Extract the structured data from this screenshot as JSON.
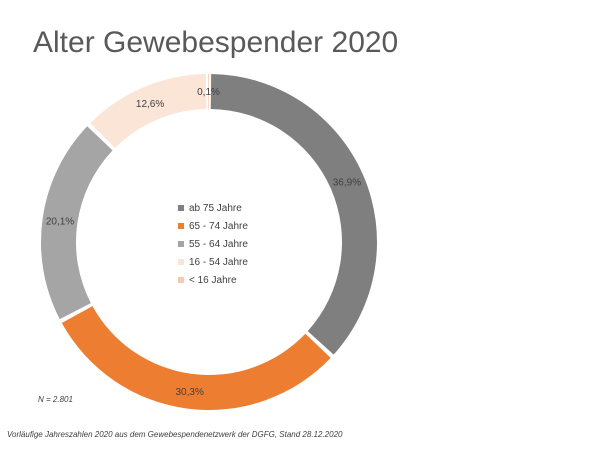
{
  "chart_data": {
    "type": "pie",
    "title": "Alter Gewebespender 2020",
    "categories": [
      "ab 75 Jahre",
      "65 - 74 Jahre",
      "55 - 64 Jahre",
      "16 - 54 Jahre",
      "< 16 Jahre"
    ],
    "values": [
      36.9,
      30.3,
      20.1,
      12.6,
      0.1
    ],
    "value_labels": [
      "36,9%",
      "30,3%",
      "20,1%",
      "12,6%",
      "0,1%"
    ],
    "colors": [
      "#7f7f7f",
      "#ed7d31",
      "#a5a5a5",
      "#fbe5d6",
      "#f8cbad"
    ],
    "legend_position": "center",
    "donut": true
  },
  "annotations": {
    "sample_size": "N = 2.801",
    "footnote": "Vorläufige Jahreszahlen 2020 aus dem Gewebespendenetzwerk der DGFG, Stand 28.12.2020"
  }
}
